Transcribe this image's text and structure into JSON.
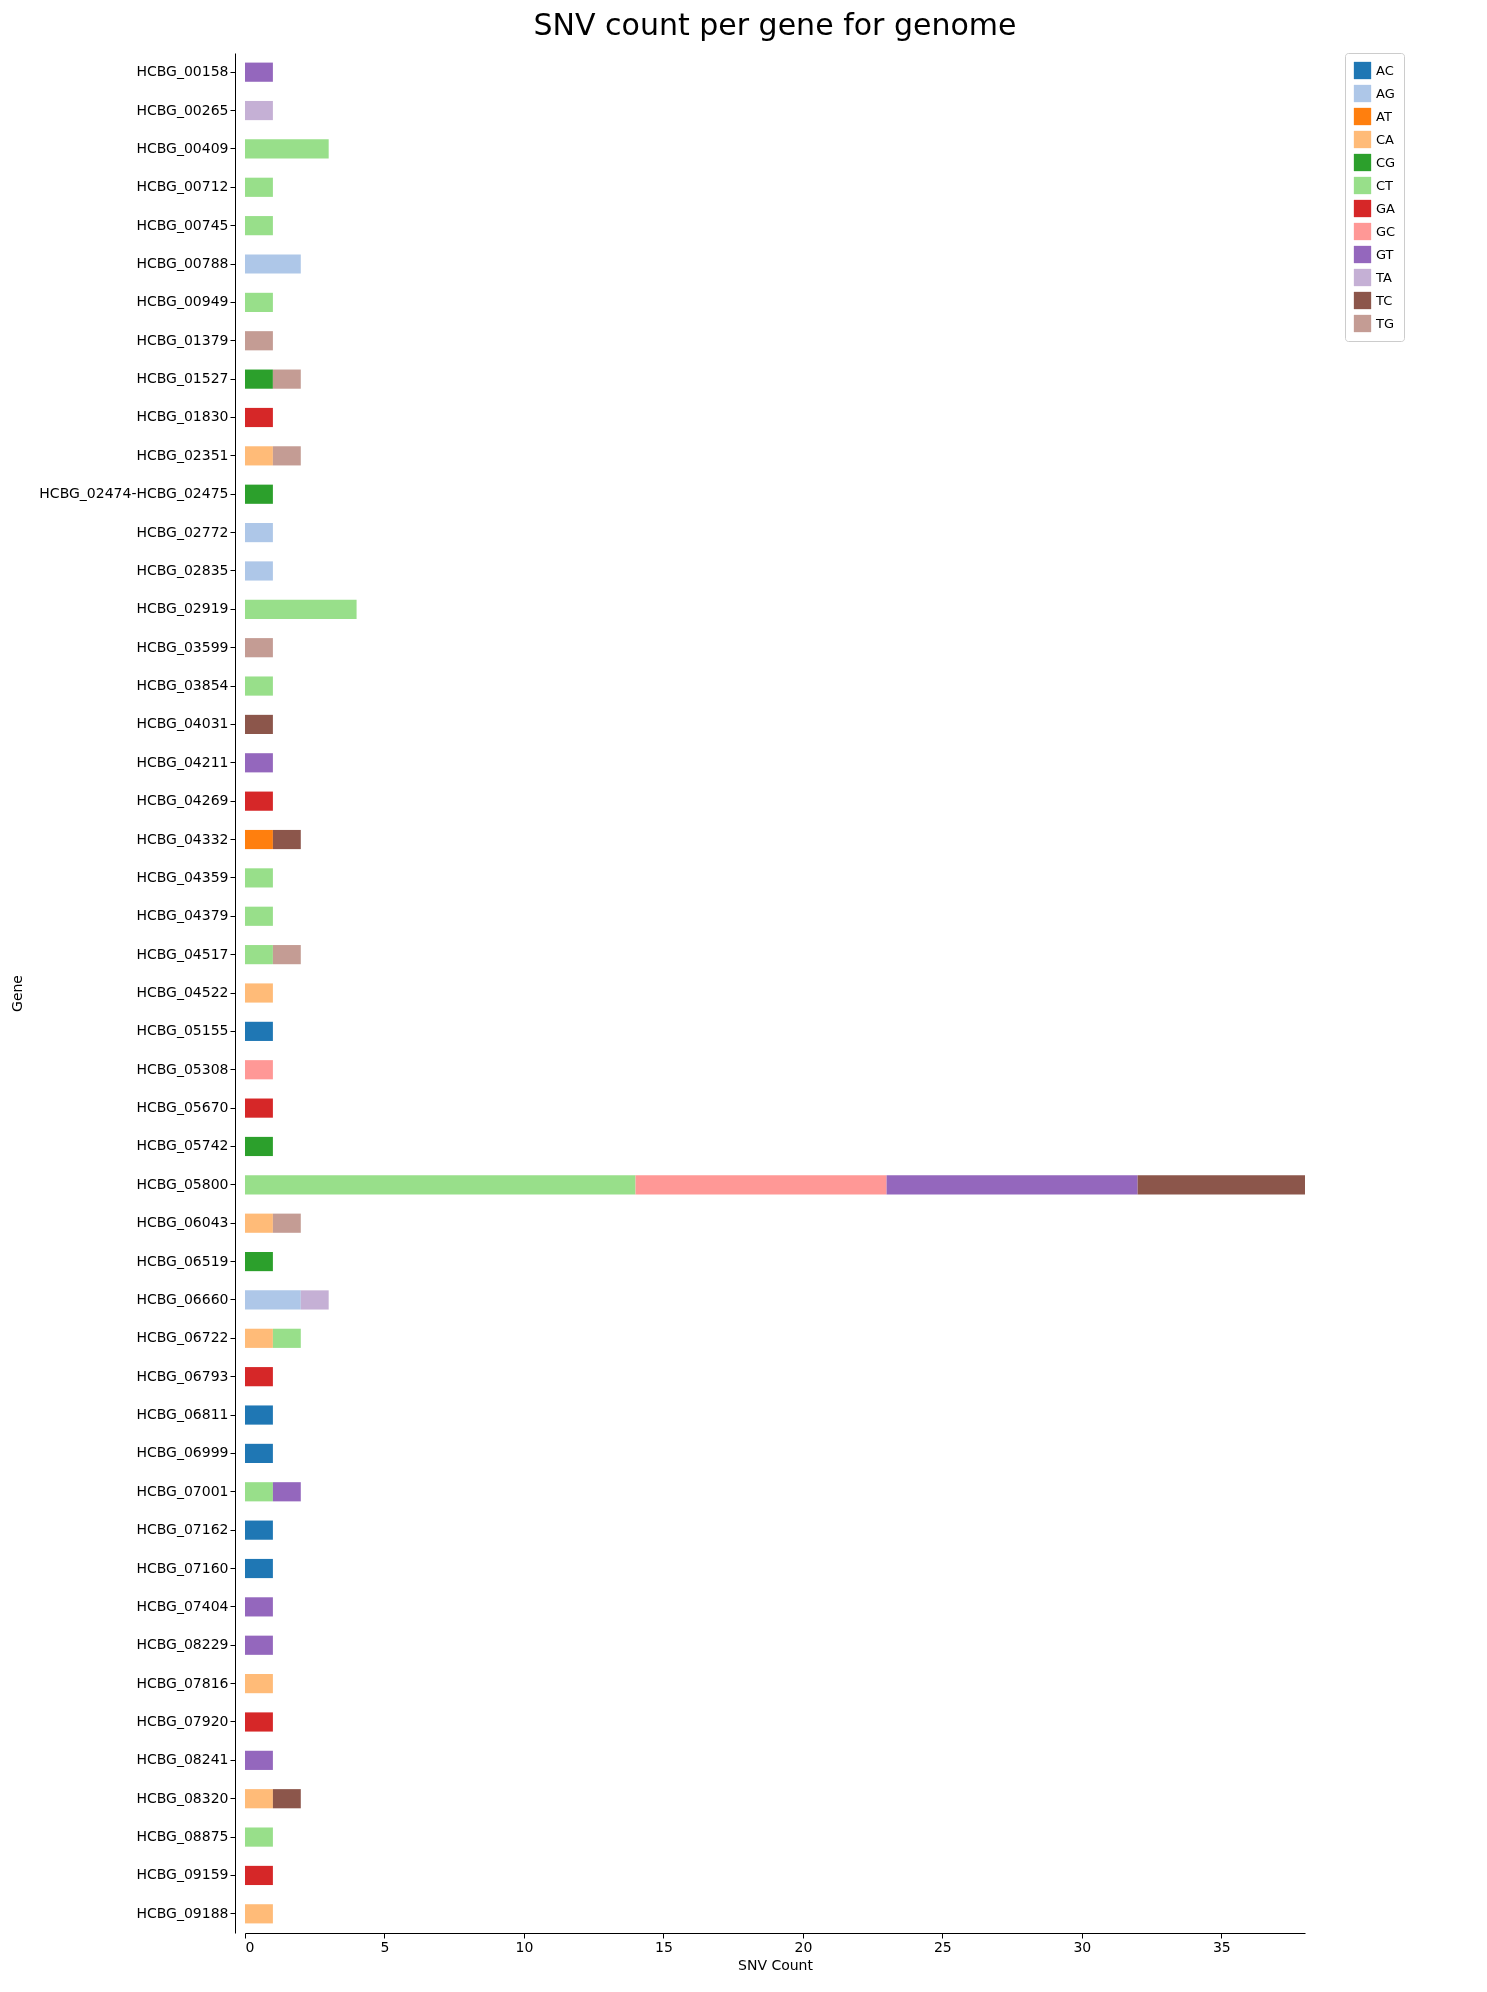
{
  "chart_data": {
    "type": "bar",
    "orientation": "horizontal",
    "stacked": true,
    "title": "SNV count per gene for genome",
    "xlabel": "SNV Count",
    "ylabel": "Gene",
    "legend": "top right",
    "grid": false,
    "categories": [
      "HCBG_00158",
      "HCBG_00265",
      "HCBG_00409",
      "HCBG_00712",
      "HCBG_00745",
      "HCBG_00788",
      "HCBG_00949",
      "HCBG_01379",
      "HCBG_01527",
      "HCBG_01830",
      "HCBG_02351",
      "HCBG_02474-HCBG_02475",
      "HCBG_02772",
      "HCBG_02835",
      "HCBG_02919",
      "HCBG_03599",
      "HCBG_03854",
      "HCBG_04031",
      "HCBG_04211",
      "HCBG_04269",
      "HCBG_04332",
      "HCBG_04359",
      "HCBG_04379",
      "HCBG_04517",
      "HCBG_04522",
      "HCBG_05155",
      "HCBG_05308",
      "HCBG_05670",
      "HCBG_05742",
      "HCBG_05800",
      "HCBG_06043",
      "HCBG_06519",
      "HCBG_06660",
      "HCBG_06722",
      "HCBG_06793",
      "HCBG_06811",
      "HCBG_06999",
      "HCBG_07001",
      "HCBG_07162",
      "HCBG_07160",
      "HCBG_07404",
      "HCBG_08229",
      "HCBG_07816",
      "HCBG_07920",
      "HCBG_08241",
      "HCBG_08320",
      "HCBG_08875",
      "HCBG_09159",
      "HCBG_09188"
    ],
    "xlim": [
      0,
      38
    ],
    "xticks": [
      0,
      5,
      10,
      15,
      20,
      25,
      30,
      35
    ],
    "series": [
      {
        "name": "AC",
        "color": "#1f77b4",
        "values": [
          null,
          null,
          null,
          null,
          null,
          null,
          null,
          null,
          null,
          null,
          null,
          null,
          null,
          null,
          null,
          null,
          null,
          null,
          null,
          null,
          null,
          null,
          null,
          null,
          null,
          1,
          null,
          null,
          null,
          null,
          null,
          null,
          null,
          null,
          null,
          1,
          1,
          null,
          1,
          1,
          null,
          null,
          null,
          null,
          null,
          null,
          null,
          null,
          null
        ]
      },
      {
        "name": "AG",
        "color": "#aec7e8",
        "values": [
          null,
          null,
          null,
          null,
          null,
          2,
          null,
          null,
          null,
          null,
          null,
          null,
          1,
          1,
          null,
          null,
          null,
          null,
          null,
          null,
          null,
          null,
          null,
          null,
          null,
          null,
          null,
          null,
          null,
          null,
          null,
          null,
          2,
          null,
          null,
          null,
          null,
          null,
          null,
          null,
          null,
          null,
          null,
          null,
          null,
          null,
          null,
          null,
          null
        ]
      },
      {
        "name": "AT",
        "color": "#ff7f0e",
        "values": [
          null,
          null,
          null,
          null,
          null,
          null,
          null,
          null,
          null,
          null,
          null,
          null,
          null,
          null,
          null,
          null,
          null,
          null,
          null,
          null,
          1,
          null,
          null,
          null,
          null,
          null,
          null,
          null,
          null,
          null,
          null,
          null,
          null,
          null,
          null,
          null,
          null,
          null,
          null,
          null,
          null,
          null,
          null,
          null,
          null,
          null,
          null,
          null,
          null
        ]
      },
      {
        "name": "CA",
        "color": "#ffbb78",
        "values": [
          null,
          null,
          null,
          null,
          null,
          null,
          null,
          null,
          null,
          null,
          1,
          null,
          null,
          null,
          null,
          null,
          null,
          null,
          null,
          null,
          null,
          null,
          null,
          null,
          1,
          null,
          null,
          null,
          null,
          null,
          1,
          null,
          null,
          1,
          null,
          null,
          null,
          null,
          null,
          null,
          null,
          null,
          1,
          null,
          null,
          1,
          null,
          null,
          1
        ]
      },
      {
        "name": "CG",
        "color": "#2ca02c",
        "values": [
          null,
          null,
          null,
          null,
          null,
          null,
          null,
          null,
          1,
          null,
          null,
          1,
          null,
          null,
          null,
          null,
          null,
          null,
          null,
          null,
          null,
          null,
          null,
          null,
          null,
          null,
          null,
          null,
          1,
          null,
          null,
          1,
          null,
          null,
          null,
          null,
          null,
          null,
          null,
          null,
          null,
          null,
          null,
          null,
          null,
          null,
          null,
          null,
          null
        ]
      },
      {
        "name": "CT",
        "color": "#98df8a",
        "values": [
          null,
          null,
          3,
          1,
          1,
          null,
          1,
          null,
          null,
          null,
          null,
          null,
          null,
          null,
          4,
          null,
          1,
          null,
          null,
          null,
          null,
          1,
          1,
          1,
          null,
          null,
          null,
          null,
          null,
          14,
          null,
          null,
          null,
          1,
          null,
          null,
          null,
          1,
          null,
          null,
          null,
          null,
          null,
          null,
          null,
          null,
          1,
          null,
          null
        ]
      },
      {
        "name": "GA",
        "color": "#d62728",
        "values": [
          null,
          null,
          null,
          null,
          null,
          null,
          null,
          null,
          null,
          1,
          null,
          null,
          null,
          null,
          null,
          null,
          null,
          null,
          null,
          1,
          null,
          null,
          null,
          null,
          null,
          null,
          null,
          1,
          null,
          null,
          null,
          null,
          null,
          null,
          1,
          null,
          null,
          null,
          null,
          null,
          null,
          null,
          null,
          1,
          null,
          null,
          null,
          1,
          null
        ]
      },
      {
        "name": "GC",
        "color": "#ff9896",
        "values": [
          null,
          null,
          null,
          null,
          null,
          null,
          null,
          null,
          null,
          null,
          null,
          null,
          null,
          null,
          null,
          null,
          null,
          null,
          null,
          null,
          null,
          null,
          null,
          null,
          null,
          null,
          1,
          null,
          null,
          9,
          null,
          null,
          null,
          null,
          null,
          null,
          null,
          null,
          null,
          null,
          null,
          null,
          null,
          null,
          null,
          null,
          null,
          null,
          null
        ]
      },
      {
        "name": "GT",
        "color": "#9467bd",
        "values": [
          1,
          null,
          null,
          null,
          null,
          null,
          null,
          null,
          null,
          null,
          null,
          null,
          null,
          null,
          null,
          null,
          null,
          null,
          1,
          null,
          null,
          null,
          null,
          null,
          null,
          null,
          null,
          null,
          null,
          9,
          null,
          null,
          null,
          null,
          null,
          null,
          null,
          1,
          null,
          null,
          1,
          1,
          null,
          null,
          1,
          null,
          null,
          null,
          null
        ]
      },
      {
        "name": "TA",
        "color": "#c5b0d5",
        "values": [
          null,
          1,
          null,
          null,
          null,
          null,
          null,
          null,
          null,
          null,
          null,
          null,
          null,
          null,
          null,
          null,
          null,
          null,
          null,
          null,
          null,
          null,
          null,
          null,
          null,
          null,
          null,
          null,
          null,
          null,
          null,
          null,
          1,
          null,
          null,
          null,
          null,
          null,
          null,
          null,
          null,
          null,
          null,
          null,
          null,
          null,
          null,
          null,
          null
        ]
      },
      {
        "name": "TC",
        "color": "#8c564b",
        "values": [
          null,
          null,
          null,
          null,
          null,
          null,
          null,
          null,
          null,
          null,
          null,
          null,
          null,
          null,
          null,
          null,
          null,
          1,
          null,
          null,
          1,
          null,
          null,
          null,
          null,
          null,
          null,
          null,
          null,
          6,
          null,
          null,
          null,
          null,
          null,
          null,
          null,
          null,
          null,
          null,
          null,
          null,
          null,
          null,
          null,
          1,
          null,
          null,
          null
        ]
      },
      {
        "name": "TG",
        "color": "#c49c94",
        "values": [
          null,
          null,
          null,
          null,
          null,
          null,
          null,
          1,
          1,
          null,
          1,
          null,
          null,
          null,
          null,
          1,
          null,
          null,
          null,
          null,
          null,
          null,
          null,
          1,
          null,
          null,
          null,
          null,
          null,
          null,
          1,
          null,
          null,
          null,
          null,
          null,
          null,
          null,
          null,
          null,
          null,
          null,
          null,
          null,
          null,
          null,
          null,
          null,
          null
        ]
      }
    ]
  }
}
